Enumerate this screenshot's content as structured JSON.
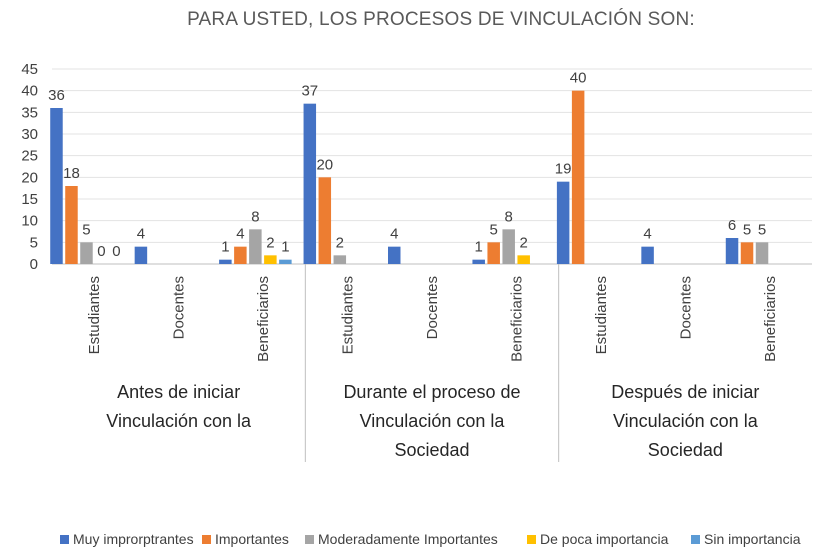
{
  "chart_data": {
    "type": "bar",
    "title": "PARA USTED, LOS PROCESOS DE VINCULACIÓN SON:",
    "xlabel": "",
    "ylabel": "",
    "ylim": [
      0,
      45
    ],
    "yticks": [
      0,
      5,
      10,
      15,
      20,
      25,
      30,
      35,
      40,
      45
    ],
    "grid": true,
    "legend_position": "bottom",
    "groups": [
      {
        "label_lines": [
          "Antes de iniciar",
          "Vinculación con la"
        ],
        "categories": [
          "Estudiantes",
          "Docentes",
          "Beneficiarios"
        ]
      },
      {
        "label_lines": [
          "Durante el proceso de",
          "Vinculación con la",
          "Sociedad"
        ],
        "categories": [
          "Estudiantes",
          "Docentes",
          "Beneficiarios"
        ]
      },
      {
        "label_lines": [
          "Después de iniciar",
          "Vinculación con la",
          "Sociedad"
        ],
        "categories": [
          "Estudiantes",
          "Docentes",
          "Beneficiarios"
        ]
      }
    ],
    "series": [
      {
        "name": "Muy improrptrantes",
        "color": "#4472c4",
        "values": [
          36,
          4,
          1,
          37,
          4,
          1,
          19,
          4,
          6
        ]
      },
      {
        "name": "Importantes",
        "color": "#ed7d31",
        "values": [
          18,
          null,
          4,
          20,
          null,
          5,
          40,
          null,
          5
        ]
      },
      {
        "name": "Moderadamente Importantes",
        "color": "#a5a5a5",
        "values": [
          5,
          null,
          8,
          2,
          null,
          8,
          null,
          null,
          5
        ]
      },
      {
        "name": "De poca importancia",
        "color": "#ffc000",
        "values": [
          0,
          null,
          2,
          null,
          null,
          2,
          null,
          null,
          null
        ]
      },
      {
        "name": "Sin importancia",
        "color": "#5b9bd5",
        "values": [
          0,
          null,
          1,
          null,
          null,
          null,
          null,
          null,
          null
        ]
      }
    ]
  }
}
